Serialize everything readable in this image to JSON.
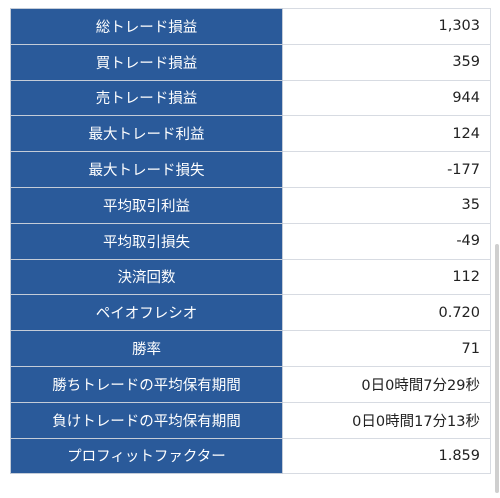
{
  "colors": {
    "label_background": "#2a5a9a",
    "label_text": "#ffffff",
    "value_background": "#ffffff",
    "value_text": "#222222",
    "border": "#d7dbe2",
    "scrollbar": "#cfcfcf"
  },
  "stats": {
    "rows": [
      {
        "label": "総トレード損益",
        "value": "1,303"
      },
      {
        "label": "買トレード損益",
        "value": "359"
      },
      {
        "label": "売トレード損益",
        "value": "944"
      },
      {
        "label": "最大トレード利益",
        "value": "124"
      },
      {
        "label": "最大トレード損失",
        "value": "-177"
      },
      {
        "label": "平均取引利益",
        "value": "35"
      },
      {
        "label": "平均取引損失",
        "value": "-49"
      },
      {
        "label": "決済回数",
        "value": "112"
      },
      {
        "label": "ペイオフレシオ",
        "value": "0.720"
      },
      {
        "label": "勝率",
        "value": "71"
      },
      {
        "label": "勝ちトレードの平均保有期間",
        "value": "0日0時間7分29秒"
      },
      {
        "label": "負けトレードの平均保有期間",
        "value": "0日0時間17分13秒"
      },
      {
        "label": "プロフィットファクター",
        "value": "1.859"
      }
    ]
  }
}
